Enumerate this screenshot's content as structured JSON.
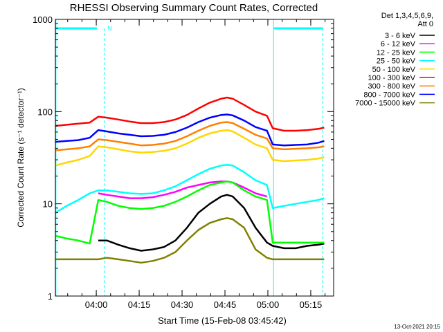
{
  "chart_data": {
    "type": "line",
    "title": "RHESSI Observing Summary Count Rates, Corrected",
    "xlabel": "Start Time (15-Feb-08 03:45:42)",
    "ylabel": "Corrected Count Rate (s⁻¹ detector⁻¹)",
    "y_scale": "log",
    "ylim": [
      1,
      1000
    ],
    "xlim": [
      "03:45:42",
      "05:23:00"
    ],
    "x_unit": "minutes since 03:45:42",
    "x_ticks": [
      {
        "label": "04:00",
        "value": 14.3
      },
      {
        "label": "04:15",
        "value": 29.3
      },
      {
        "label": "04:30",
        "value": 44.3
      },
      {
        "label": "04:45",
        "value": 59.3
      },
      {
        "label": "05:00",
        "value": 74.3
      },
      {
        "label": "05:15",
        "value": 89.3
      }
    ],
    "y_ticks": [
      {
        "label": "1",
        "value": 1
      },
      {
        "label": "10",
        "value": 10
      },
      {
        "label": "100",
        "value": 100
      },
      {
        "label": "1000",
        "value": 1000
      }
    ],
    "legend_header": [
      "Det 1,3,4,5,6,9,",
      "Att 0"
    ],
    "legend_position": "right",
    "annotations": {
      "night_marker": "N",
      "footer": "13-Oct-2021 20:15"
    },
    "x": [
      0,
      4,
      8,
      12,
      15,
      18,
      22,
      26,
      30,
      34,
      38,
      42,
      46,
      50,
      54,
      58,
      60,
      62,
      66,
      70,
      74,
      76,
      80,
      84,
      88,
      92,
      94
    ],
    "series": [
      {
        "name": "3 - 6 keV",
        "color": "#000000",
        "values": [
          null,
          null,
          null,
          null,
          4,
          4,
          3.6,
          3.3,
          3.1,
          3.2,
          3.4,
          4,
          5.5,
          8,
          10,
          12,
          12.5,
          12,
          9,
          5.5,
          3.8,
          3.5,
          3.3,
          3.3,
          3.5,
          3.6,
          3.7
        ]
      },
      {
        "name": "6 - 12 keV",
        "color": "#ff00ff",
        "values": [
          null,
          null,
          null,
          null,
          13,
          12.5,
          12,
          11.5,
          11.5,
          11.8,
          12.5,
          13.5,
          15,
          16,
          17,
          17.5,
          17.5,
          17,
          15,
          13,
          12,
          null,
          null,
          null,
          null,
          null,
          null
        ]
      },
      {
        "name": "12 - 25 keV",
        "color": "#00ff00",
        "values": [
          4.5,
          4.2,
          4,
          3.7,
          11,
          10.5,
          9.5,
          9,
          8.8,
          9,
          9.5,
          10.5,
          12,
          14,
          16,
          17,
          17.5,
          17,
          14,
          12,
          11,
          3.8,
          3.8,
          3.8,
          3.8,
          3.8,
          3.8
        ]
      },
      {
        "name": "25 - 50 keV",
        "color": "#00ffff",
        "values": [
          8,
          9.5,
          11,
          13,
          14,
          14,
          13.5,
          13,
          12.8,
          13,
          14,
          15.5,
          18,
          21,
          24,
          26,
          26.5,
          26,
          22,
          18,
          16,
          9,
          9.5,
          10,
          10.5,
          11,
          11.5
        ]
      },
      {
        "name": "50 - 100 keV",
        "color": "#ffd700",
        "values": [
          26,
          28,
          30,
          33,
          42,
          41,
          39,
          37,
          36,
          36.5,
          37.5,
          40,
          45,
          52,
          58,
          62,
          63,
          61,
          52,
          44,
          40,
          30,
          29,
          29.5,
          30,
          31,
          32
        ]
      },
      {
        "name": "100 - 300 keV",
        "color": "#ff0000",
        "values": [
          70,
          72,
          74,
          76,
          88,
          86,
          82,
          78,
          75,
          75,
          77,
          82,
          92,
          108,
          125,
          138,
          142,
          138,
          118,
          100,
          90,
          66,
          62,
          62,
          63,
          65,
          67
        ]
      },
      {
        "name": "300 - 800 keV",
        "color": "#ff8000",
        "values": [
          38,
          39,
          40,
          42,
          50,
          49,
          47,
          45,
          43,
          43.5,
          45,
          48,
          54,
          62,
          70,
          76,
          77,
          75,
          65,
          56,
          51,
          40,
          39,
          39.5,
          40,
          41,
          42
        ]
      },
      {
        "name": "800 - 7000 keV",
        "color": "#0000ff",
        "values": [
          47,
          48,
          49,
          52,
          63,
          61,
          58,
          56,
          54,
          54.5,
          56,
          60,
          67,
          77,
          86,
          92,
          93,
          91,
          80,
          68,
          62,
          44,
          43,
          43.5,
          44,
          46,
          48
        ]
      },
      {
        "name": "7000 - 15000 keV",
        "color": "#808000",
        "values": [
          2.5,
          2.5,
          2.5,
          2.5,
          2.5,
          2.6,
          2.5,
          2.4,
          2.3,
          2.4,
          2.6,
          3,
          4,
          5.2,
          6.2,
          6.8,
          7,
          6.8,
          5.5,
          3.2,
          2.6,
          2.5,
          2.5,
          2.5,
          2.5,
          2.5,
          2.5
        ]
      }
    ]
  }
}
